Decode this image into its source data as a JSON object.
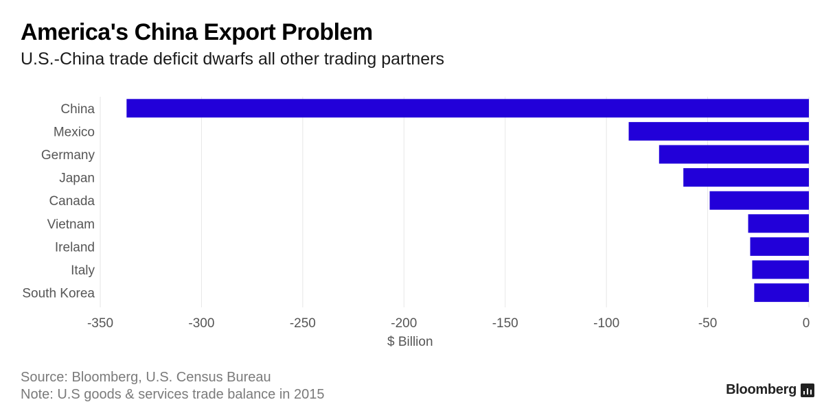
{
  "header": {
    "title": "America's China Export Problem",
    "subtitle": "U.S.-China trade deficit dwarfs all other trading partners"
  },
  "footer": {
    "source": "Source: Bloomberg, U.S. Census Bureau",
    "note": "Note: U.S goods & services trade balance in 2015",
    "brand": "Bloomberg"
  },
  "colors": {
    "bar": "#2200d9",
    "grid": "#e6e6e6",
    "label": "#555555"
  },
  "chart_data": {
    "type": "bar",
    "orientation": "horizontal",
    "title": "America's China Export Problem",
    "subtitle": "U.S.-China trade deficit dwarfs all other trading partners",
    "xlabel": "$ Billion",
    "ylabel": "",
    "categories": [
      "China",
      "Mexico",
      "Germany",
      "Japan",
      "Canada",
      "Vietnam",
      "Ireland",
      "Italy",
      "South Korea"
    ],
    "values": [
      -337,
      -89,
      -74,
      -62,
      -49,
      -30,
      -29,
      -28,
      -27
    ],
    "xlim": [
      -350,
      0
    ],
    "xticks": [
      -350,
      -300,
      -250,
      -200,
      -150,
      -100,
      -50,
      0
    ],
    "grid": "vertical",
    "legend": "none"
  }
}
